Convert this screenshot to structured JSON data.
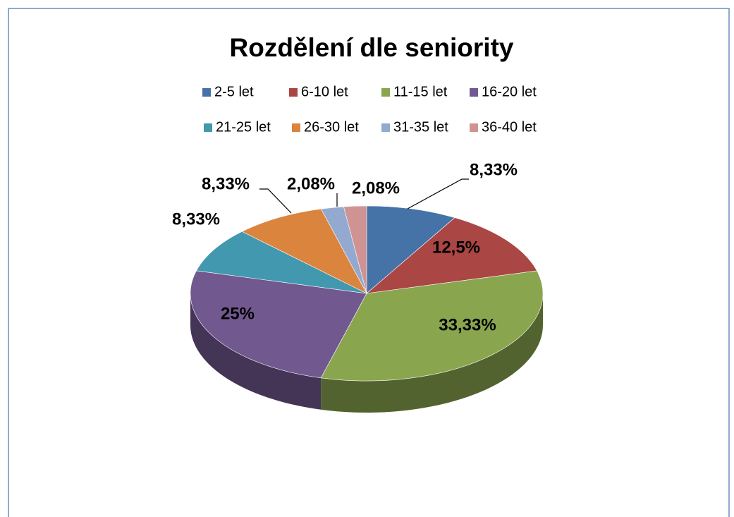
{
  "chart_data": {
    "type": "pie",
    "title": "Rozdělení dle seniority",
    "categories": [
      "2-5 let",
      "6-10 let",
      "11-15 let",
      "16-20 let",
      "21-25 let",
      "26-30 let",
      "31-35 let",
      "36-40 let"
    ],
    "values": [
      8.33,
      12.5,
      33.33,
      25,
      8.33,
      8.33,
      2.08,
      2.08
    ],
    "value_labels": [
      "8,33%",
      "12,5%",
      "33,33%",
      "25%",
      "8,33%",
      "8,33%",
      "2,08%",
      "2,08%"
    ],
    "colors": [
      "#4572a7",
      "#aa4643",
      "#89a54e",
      "#71588f",
      "#4198af",
      "#db843d",
      "#93a9cf",
      "#d09394"
    ],
    "legend": "top"
  }
}
